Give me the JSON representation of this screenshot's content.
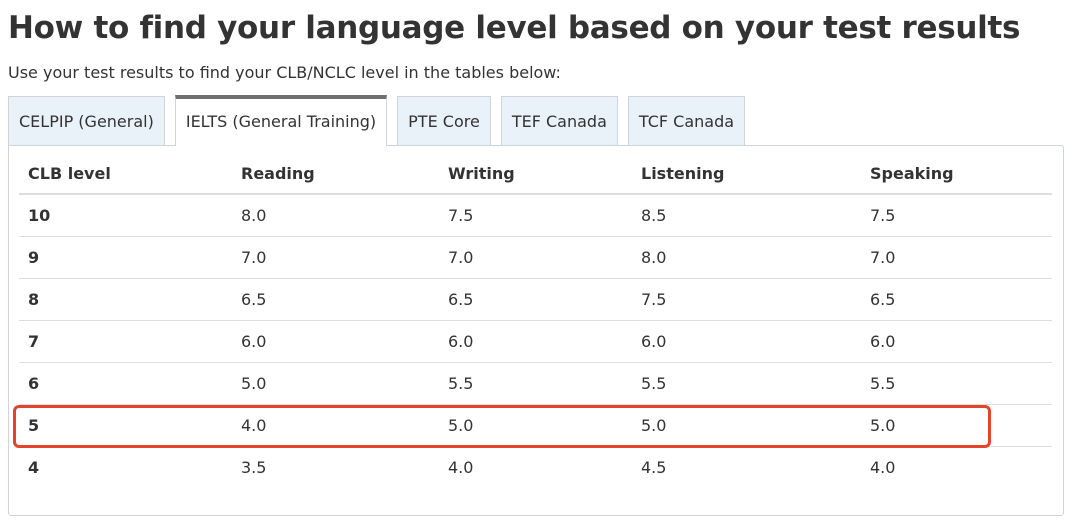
{
  "page": {
    "title": "How to find your language level based on your test results",
    "intro": "Use your test results to find your CLB/NCLC level in the tables below:"
  },
  "tabs": [
    {
      "label": "CELPIP (General)",
      "active": false
    },
    {
      "label": "IELTS (General Training)",
      "active": true
    },
    {
      "label": "PTE Core",
      "active": false
    },
    {
      "label": "TEF Canada",
      "active": false
    },
    {
      "label": "TCF Canada",
      "active": false
    }
  ],
  "table": {
    "headers": [
      "CLB level",
      "Reading",
      "Writing",
      "Listening",
      "Speaking"
    ],
    "rows": [
      [
        "10",
        "8.0",
        "7.5",
        "8.5",
        "7.5"
      ],
      [
        "9",
        "7.0",
        "7.0",
        "8.0",
        "7.0"
      ],
      [
        "8",
        "6.5",
        "6.5",
        "7.5",
        "6.5"
      ],
      [
        "7",
        "6.0",
        "6.0",
        "6.0",
        "6.0"
      ],
      [
        "6",
        "5.0",
        "5.5",
        "5.5",
        "5.5"
      ],
      [
        "5",
        "4.0",
        "5.0",
        "5.0",
        "5.0"
      ],
      [
        "4",
        "3.5",
        "4.0",
        "4.5",
        "4.0"
      ]
    ],
    "highlighted_row": "5"
  },
  "colors": {
    "highlight": "#e2452c",
    "tab_inactive_bg": "#eaf2f9",
    "tab_active_top": "#6f6f6f",
    "border": "#cfd4db"
  }
}
